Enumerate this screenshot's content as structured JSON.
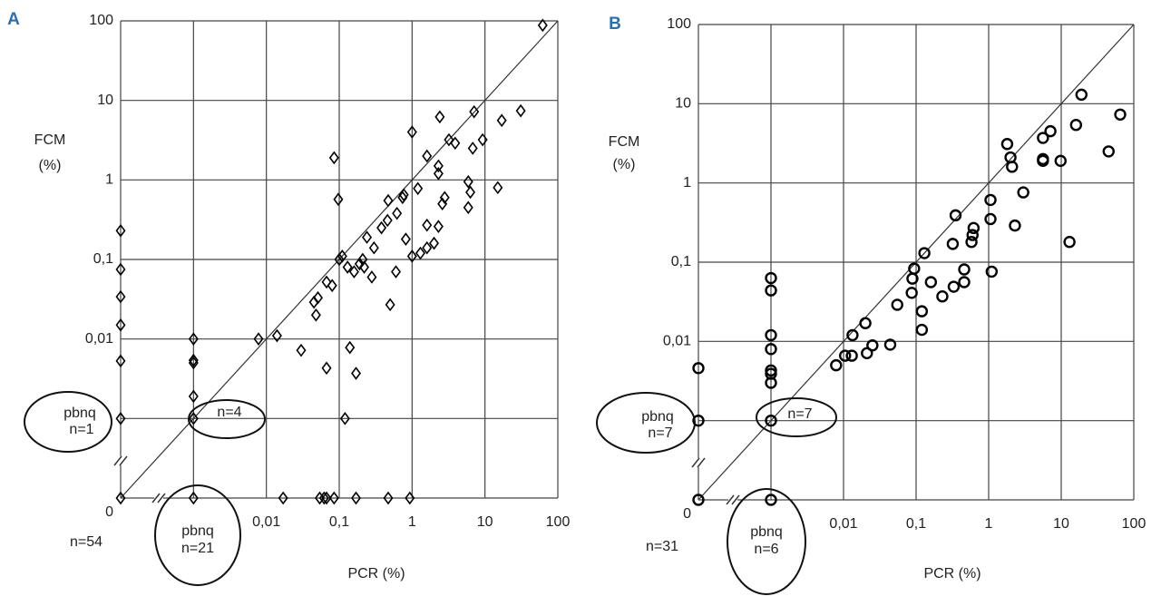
{
  "chart_data": [
    {
      "type": "scatter",
      "panel": "A",
      "marker": "diamond",
      "color": "#000000",
      "log_x": true,
      "log_y": true,
      "grid": true,
      "identity_line": true,
      "xlabel": "PCR (%)",
      "ylabel": [
        "FCM",
        "(%)"
      ],
      "xlim": [
        0.0001,
        100
      ],
      "ylim": [
        0.0001,
        100
      ],
      "xticks": [
        {
          "value": 0.0001,
          "label": null
        },
        {
          "value": 0.001,
          "label": null
        },
        {
          "value": 0.01,
          "label": "0,01"
        },
        {
          "value": 0.1,
          "label": "0,1"
        },
        1,
        10,
        100
      ],
      "yticks": [
        {
          "value": 0.0001,
          "label": "0"
        },
        {
          "value": 0.001,
          "label": null
        },
        {
          "value": 0.01,
          "label": "0,01"
        },
        {
          "value": 0.1,
          "label": "0,1"
        },
        1,
        10,
        100
      ],
      "annotations": [
        "n=54",
        "pbnq",
        "n=1",
        "n=4",
        "pbnq",
        "n=21"
      ],
      "x": [
        0.0001,
        0.0001,
        0.0001,
        0.0001,
        0.0001,
        0.0001,
        0.0001,
        0.001,
        0.001,
        0.001,
        0.001,
        0.001,
        0.001,
        0.017,
        0.054,
        0.062,
        0.067,
        0.085,
        0.17,
        0.47,
        0.93,
        62,
        1,
        0.085,
        2.4,
        7.1,
        31,
        17,
        9.3,
        3.2,
        3.9,
        6.8,
        1.6,
        2.3,
        2.3,
        1.2,
        5.9,
        6.3,
        15,
        2.8,
        2.6,
        5.9,
        0.47,
        0.097,
        0.77,
        0.74,
        0.62,
        0.46,
        0.38,
        0.24,
        1.6,
        2.3,
        2.0,
        0.82,
        1.6,
        1.0,
        1.3,
        0.11,
        0.1,
        0.3,
        0.21,
        0.19,
        0.22,
        0.13,
        0.16,
        0.28,
        0.6,
        0.067,
        0.08,
        0.045,
        0.051,
        0.048,
        0.5,
        0.0078,
        0.014,
        0.03,
        0.14,
        0.067,
        0.17,
        0.12
      ],
      "y": [
        0.23,
        0.075,
        0.034,
        0.015,
        0.0053,
        0.001,
        0.0001,
        0.01,
        0.0054,
        0.005,
        0.0019,
        0.001,
        0.0001,
        0.0001,
        0.0001,
        0.0001,
        0.0001,
        0.0001,
        0.0001,
        0.0001,
        0.0001,
        88,
        4,
        1.9,
        6.2,
        7.2,
        7.4,
        5.6,
        3.2,
        3.2,
        2.9,
        2.5,
        2,
        1.5,
        1.2,
        0.78,
        0.95,
        0.7,
        0.8,
        0.6,
        0.5,
        0.45,
        0.55,
        0.57,
        0.65,
        0.6,
        0.38,
        0.31,
        0.25,
        0.19,
        0.27,
        0.26,
        0.16,
        0.18,
        0.14,
        0.11,
        0.12,
        0.11,
        0.1,
        0.14,
        0.1,
        0.088,
        0.08,
        0.08,
        0.07,
        0.06,
        0.07,
        0.052,
        0.047,
        0.029,
        0.033,
        0.02,
        0.027,
        0.01,
        0.011,
        0.0072,
        0.0078,
        0.0043,
        0.0037,
        0.001
      ]
    },
    {
      "type": "scatter",
      "panel": "B",
      "marker": "circle",
      "color": "#000000",
      "log_x": true,
      "log_y": true,
      "grid": true,
      "identity_line": true,
      "xlabel": "PCR (%)",
      "ylabel": [
        "FCM",
        "(%)"
      ],
      "xlim": [
        0.0001,
        100
      ],
      "ylim": [
        0.0001,
        100
      ],
      "xticks": [
        {
          "value": 0.0001,
          "label": null
        },
        {
          "value": 0.001,
          "label": null
        },
        {
          "value": 0.01,
          "label": "0,01"
        },
        {
          "value": 0.1,
          "label": "0,1"
        },
        1,
        10,
        100
      ],
      "yticks": [
        {
          "value": 0.0001,
          "label": "0"
        },
        {
          "value": 0.001,
          "label": null
        },
        {
          "value": 0.01,
          "label": "0,01"
        },
        {
          "value": 0.1,
          "label": "0,1"
        },
        1,
        10,
        100
      ],
      "annotations": [
        "n=31",
        "pbnq",
        "n=7",
        "n=7",
        "pbnq",
        "n=6"
      ],
      "x": [
        0.0001,
        0.0001,
        0.0001,
        0.001,
        0.001,
        0.001,
        0.001,
        0.001,
        0.001,
        0.001,
        0.001,
        0.001,
        19,
        65,
        45,
        16,
        7.1,
        5.6,
        5.6,
        5.6,
        1.8,
        2.0,
        2.1,
        9.8,
        3,
        2.3,
        13,
        1.06,
        1.06,
        1.1,
        0.35,
        0.32,
        0.6,
        0.58,
        0.62,
        0.46,
        0.46,
        0.33,
        0.23,
        0.16,
        0.094,
        0.089,
        0.087,
        0.13,
        0.12,
        0.12,
        0.055,
        0.044,
        0.025,
        0.021,
        0.02,
        0.0133,
        0.013,
        0.0105,
        0.0079
      ],
      "y": [
        0.0046,
        0.001,
        0.0001,
        0.063,
        0.044,
        0.012,
        0.008,
        0.0043,
        0.0039,
        0.003,
        0.001,
        0.0001,
        13,
        7.3,
        2.5,
        5.4,
        4.5,
        3.7,
        2.0,
        1.9,
        3.1,
        2.1,
        1.6,
        1.9,
        0.76,
        0.29,
        0.18,
        0.61,
        0.35,
        0.076,
        0.39,
        0.17,
        0.22,
        0.18,
        0.27,
        0.081,
        0.056,
        0.049,
        0.037,
        0.056,
        0.083,
        0.062,
        0.041,
        0.13,
        0.024,
        0.014,
        0.029,
        0.0091,
        0.0089,
        0.0071,
        0.017,
        0.012,
        0.0066,
        0.0066,
        0.005
      ]
    }
  ]
}
